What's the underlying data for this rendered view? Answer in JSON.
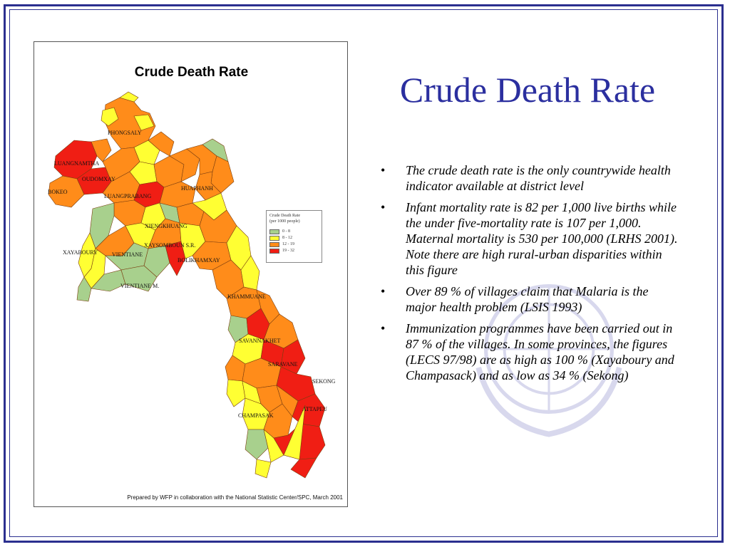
{
  "slide": {
    "title": "Crude Death Rate",
    "bullets": [
      "The crude death rate is the only countrywide health indicator available at district level",
      "Infant mortality rate is 82 per 1,000 live births while the under five-mortality rate is 107 per 1,000. Maternal mortality is 530 per 100,000 (LRHS 2001). Note there are high rural-urban disparities within this figure",
      "Over 89 % of villages claim that Malaria is the major health problem (LSIS 1993)",
      "Immunization programmes have been carried out in 87 % of the villages. In some provinces, the figures (LECS 97/98) are as high as 100 % (Xayaboury and Champasack) and as low as 34 % (Sekong)"
    ],
    "bullet_glyph": "•"
  },
  "map": {
    "title": "Crude Death Rate",
    "credit": "Prepared by WFP in collaboration with the National Statistic Center/SPC, March 2001",
    "legend": {
      "title_line1": "Crude Death Rate",
      "title_line2": "(per 1000 people)",
      "classes": [
        {
          "label": "0 - 8",
          "color": "#a8d08d"
        },
        {
          "label": "8 - 12",
          "color": "#ffff33"
        },
        {
          "label": "12 - 19",
          "color": "#ff8c1a"
        },
        {
          "label": "19 - 32",
          "color": "#f01e14"
        }
      ]
    },
    "provinces": [
      "PHONGSALY",
      "LUANGNAMTHA",
      "OUDOMXAY",
      "BOKEO",
      "LUANGPRABANG",
      "HUAPHANH",
      "XIENGKHUANG",
      "XAYABOURY",
      "VIENTIANE",
      "XAYSOMBOUN S.R.",
      "BOLIKHAMXAY",
      "VIENTIANE M.",
      "KHAMMUANE",
      "SAVANNAKHET",
      "SARAVANE",
      "SEKONG",
      "CHAMPASAK",
      "ATTAPEU"
    ]
  },
  "colors": {
    "frame": "#2b2f8f",
    "title": "#2b2f9f",
    "class_low": "#a8d08d",
    "class_mid": "#ffff33",
    "class_high": "#ff8c1a",
    "class_top": "#f01e14"
  }
}
